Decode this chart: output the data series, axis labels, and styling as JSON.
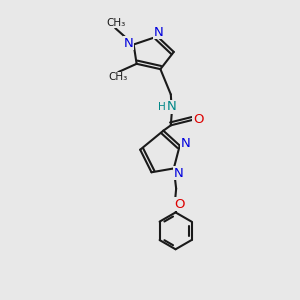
{
  "background_color": "#e8e8e8",
  "bond_color": "#1a1a1a",
  "N_color": "#0000dd",
  "O_color": "#dd0000",
  "NH_color": "#008888",
  "font_size": 8.5,
  "small_font_size": 7.5,
  "linewidth": 1.5,
  "figsize": [
    3.0,
    3.0
  ],
  "dpi": 100,
  "xlim": [
    0,
    10
  ],
  "ylim": [
    0,
    10
  ]
}
